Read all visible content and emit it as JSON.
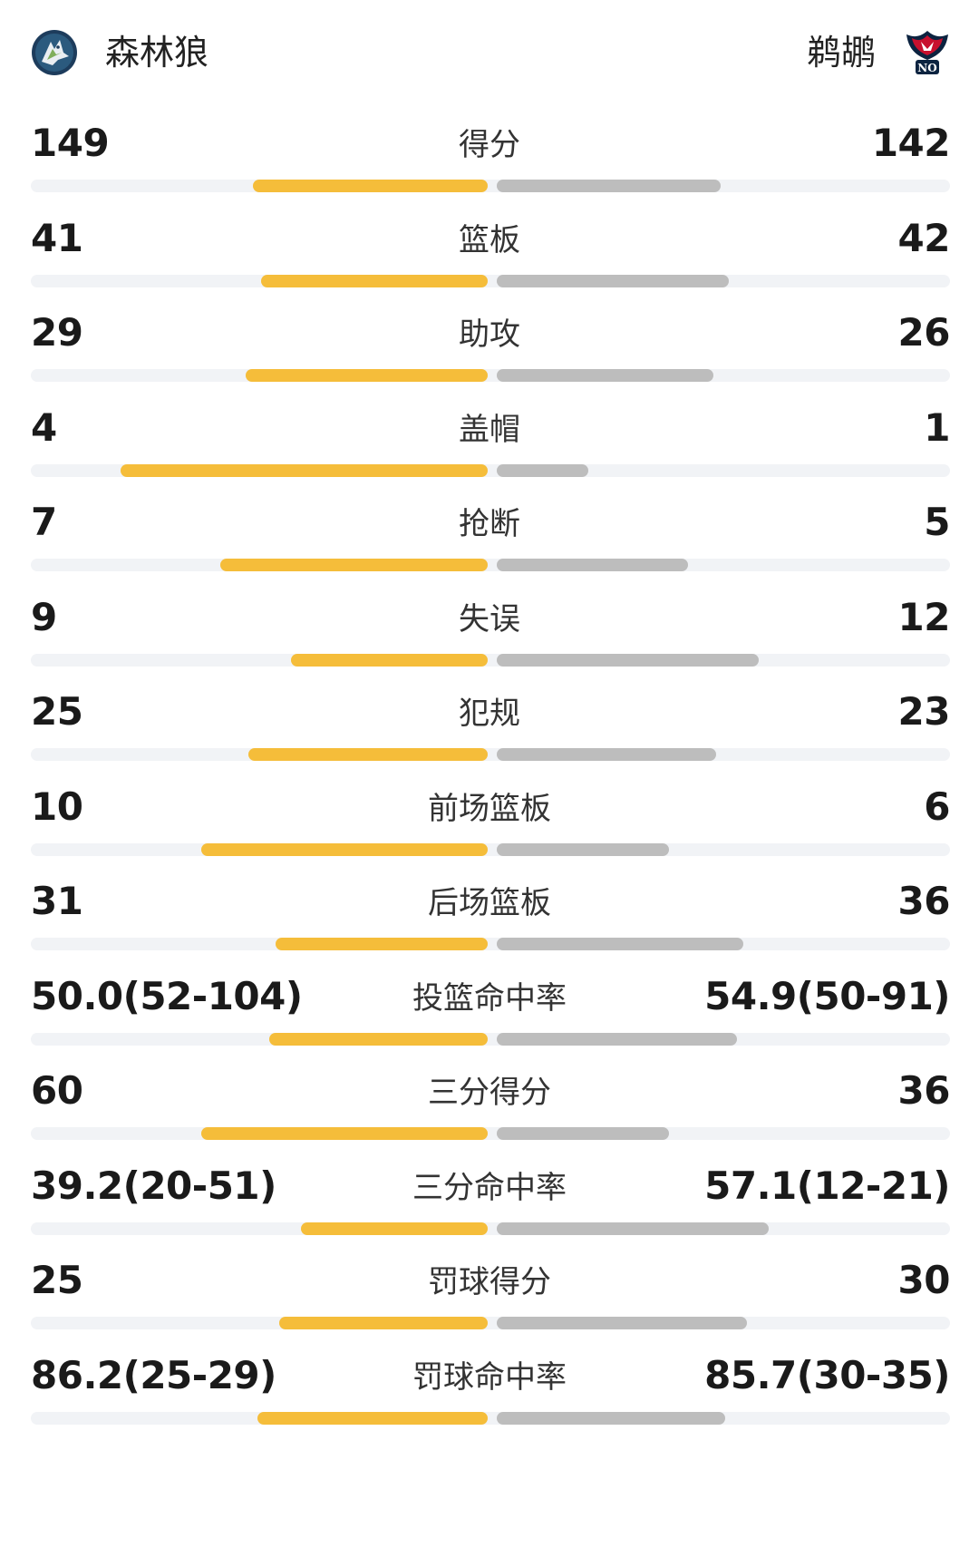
{
  "header": {
    "left_team": {
      "name": "森林狼",
      "logo": "timberwolves-logo-icon"
    },
    "right_team": {
      "name": "鹈鹕",
      "logo": "pelicans-logo-icon",
      "logo_text": "NO"
    }
  },
  "colors": {
    "left_bar": "#f5bd3a",
    "right_bar": "#bdbdbd",
    "track": "#f1f3f6"
  },
  "stats": [
    {
      "label": "得分",
      "left": "149",
      "right": "142",
      "left_share": 0.512,
      "right_share": 0.488
    },
    {
      "label": "篮板",
      "left": "41",
      "right": "42",
      "left_share": 0.494,
      "right_share": 0.506
    },
    {
      "label": "助攻",
      "left": "29",
      "right": "26",
      "left_share": 0.527,
      "right_share": 0.473
    },
    {
      "label": "盖帽",
      "left": "4",
      "right": "1",
      "left_share": 0.8,
      "right_share": 0.2
    },
    {
      "label": "抢断",
      "left": "7",
      "right": "5",
      "left_share": 0.583,
      "right_share": 0.417
    },
    {
      "label": "失误",
      "left": "9",
      "right": "12",
      "left_share": 0.429,
      "right_share": 0.571
    },
    {
      "label": "犯规",
      "left": "25",
      "right": "23",
      "left_share": 0.521,
      "right_share": 0.479
    },
    {
      "label": "前场篮板",
      "left": "10",
      "right": "6",
      "left_share": 0.625,
      "right_share": 0.375
    },
    {
      "label": "后场篮板",
      "left": "31",
      "right": "36",
      "left_share": 0.463,
      "right_share": 0.537
    },
    {
      "label": "投篮命中率",
      "left": "50.0(52-104)",
      "right": "54.9(50-91)",
      "left_share": 0.477,
      "right_share": 0.523
    },
    {
      "label": "三分得分",
      "left": "60",
      "right": "36",
      "left_share": 0.625,
      "right_share": 0.375
    },
    {
      "label": "三分命中率",
      "left": "39.2(20-51)",
      "right": "57.1(12-21)",
      "left_share": 0.407,
      "right_share": 0.593
    },
    {
      "label": "罚球得分",
      "left": "25",
      "right": "30",
      "left_share": 0.455,
      "right_share": 0.545
    },
    {
      "label": "罚球命中率",
      "left": "86.2(25-29)",
      "right": "85.7(30-35)",
      "left_share": 0.501,
      "right_share": 0.499
    }
  ]
}
